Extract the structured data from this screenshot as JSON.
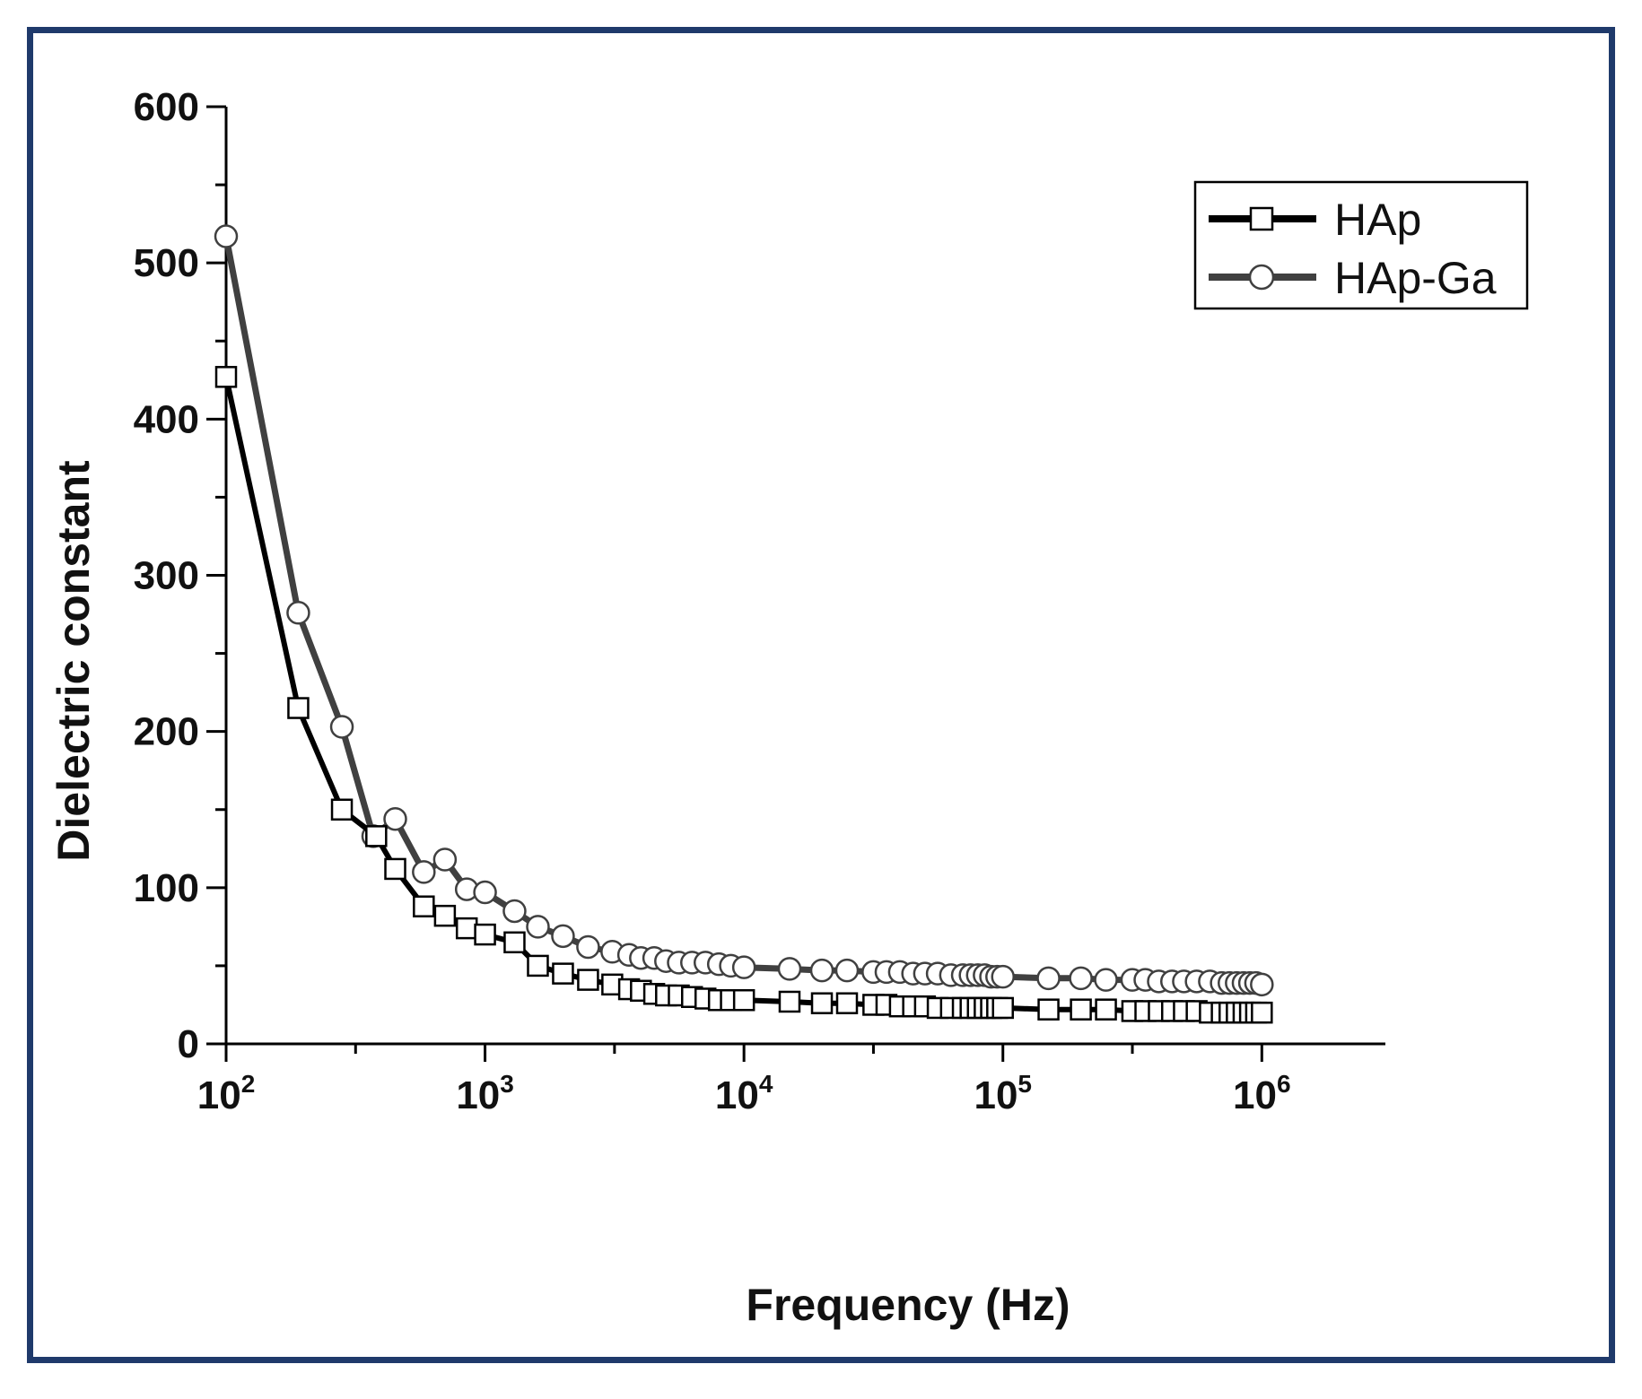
{
  "chart_data": {
    "type": "line",
    "x_scale": "log",
    "xlabel": "Frequency (Hz)",
    "ylabel": "Dielectric constant",
    "xlim": [
      100,
      3000000
    ],
    "ylim": [
      0,
      600
    ],
    "y_ticks": [
      0,
      100,
      200,
      300,
      400,
      500,
      600
    ],
    "x_ticks": [
      {
        "value": 100,
        "base": "10",
        "exp": "2"
      },
      {
        "value": 1000,
        "base": "10",
        "exp": "3"
      },
      {
        "value": 10000,
        "base": "10",
        "exp": "4"
      },
      {
        "value": 100000,
        "base": "10",
        "exp": "5"
      },
      {
        "value": 1000000,
        "base": "10",
        "exp": "6"
      }
    ],
    "legend_position": "top-right",
    "series": [
      {
        "name": "HAp",
        "marker": "square",
        "color": "#000000",
        "x": [
          100,
          190,
          280,
          380,
          450,
          580,
          700,
          850,
          1000,
          1300,
          1600,
          2000,
          2500,
          3100,
          3600,
          4000,
          4500,
          5000,
          5600,
          6300,
          7100,
          8000,
          8900,
          10000,
          15000,
          20000,
          25000,
          31600,
          35500,
          40000,
          45000,
          50000,
          56000,
          63000,
          70000,
          75000,
          80000,
          85000,
          90000,
          95000,
          100000,
          150000,
          200000,
          250000,
          316000,
          355000,
          400000,
          450000,
          500000,
          560000,
          630000,
          700000,
          750000,
          800000,
          850000,
          900000,
          950000,
          1000000
        ],
        "y": [
          427,
          215,
          150,
          133,
          112,
          88,
          82,
          74,
          70,
          65,
          50,
          45,
          41,
          38,
          35,
          34,
          32,
          31,
          31,
          30,
          29,
          28,
          28,
          28,
          27,
          26,
          26,
          25,
          25,
          24,
          24,
          24,
          23,
          23,
          23,
          23,
          23,
          23,
          23,
          23,
          23,
          22,
          22,
          22,
          21,
          21,
          21,
          21,
          21,
          21,
          20,
          20,
          20,
          20,
          20,
          20,
          20,
          20
        ]
      },
      {
        "name": "HAp-Ga",
        "marker": "circle",
        "color": "#404040",
        "x": [
          100,
          190,
          280,
          370,
          450,
          580,
          700,
          850,
          1000,
          1300,
          1600,
          2000,
          2500,
          3100,
          3600,
          4000,
          4500,
          5000,
          5600,
          6300,
          7100,
          8000,
          8900,
          10000,
          15000,
          20000,
          25000,
          31600,
          35500,
          40000,
          45000,
          50000,
          56000,
          63000,
          70000,
          75000,
          80000,
          85000,
          90000,
          95000,
          100000,
          150000,
          200000,
          250000,
          316000,
          355000,
          400000,
          450000,
          500000,
          560000,
          630000,
          700000,
          750000,
          800000,
          850000,
          900000,
          950000,
          1000000
        ],
        "y": [
          517,
          276,
          203,
          133,
          144,
          110,
          118,
          99,
          97,
          85,
          75,
          69,
          62,
          59,
          57,
          55,
          55,
          53,
          52,
          52,
          52,
          51,
          50,
          49,
          48,
          47,
          47,
          46,
          46,
          46,
          45,
          45,
          45,
          44,
          44,
          44,
          44,
          44,
          43,
          43,
          43,
          42,
          42,
          41,
          41,
          41,
          40,
          40,
          40,
          40,
          40,
          39,
          39,
          39,
          39,
          39,
          39,
          38
        ]
      }
    ]
  }
}
